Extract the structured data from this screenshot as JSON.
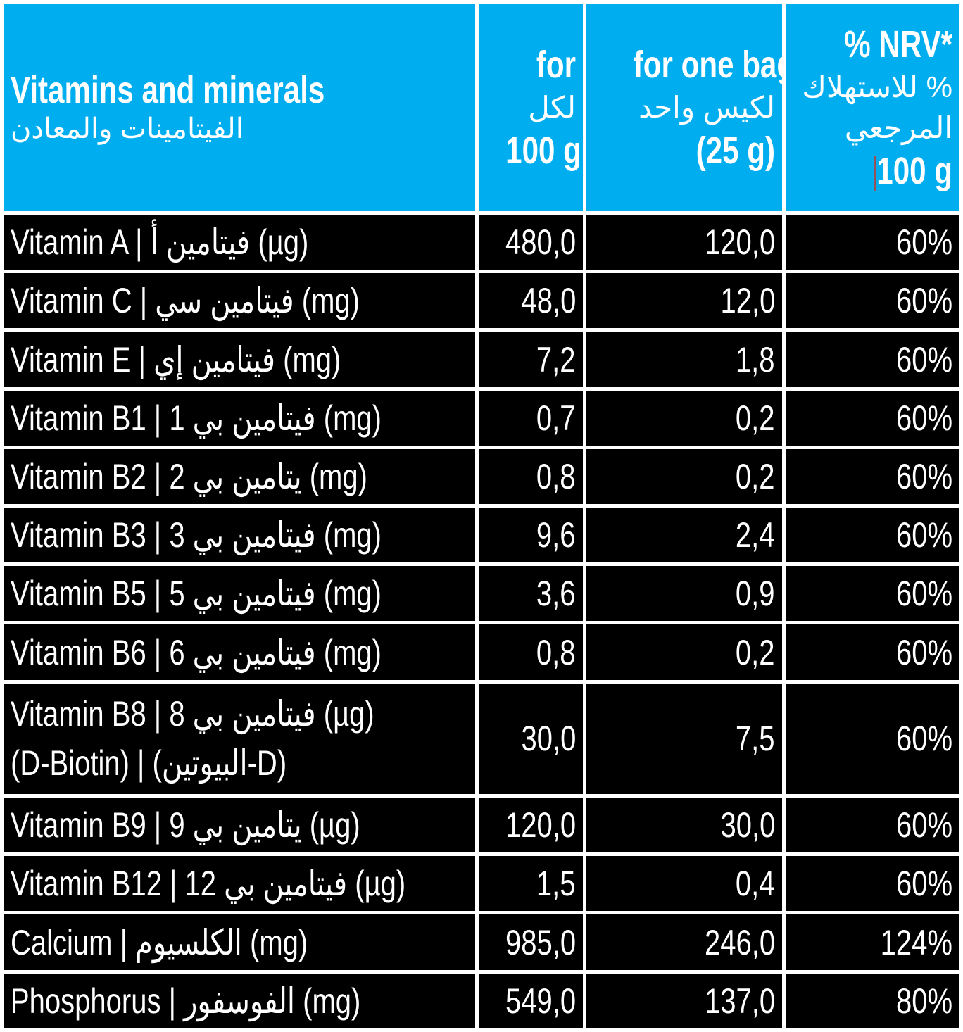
{
  "header": {
    "col1": {
      "title": "Vitamins and minerals",
      "title_ar": "الفيتامينات والمعادن"
    },
    "col2": {
      "line1": "for",
      "line2_ar": "لكل",
      "line3": "100 g"
    },
    "col3": {
      "line1": "for one bag",
      "line2_ar": "لكيس واحد",
      "line3": "(25 g)"
    },
    "col4": {
      "line1": "% NRV*",
      "line2_ar": "% للاستهلاك",
      "line3_ar": "المرجعي",
      "line4": "100 g"
    }
  },
  "rows": [
    {
      "name": "Vitamin A | فيتامين أ (µg)",
      "per100": "480,0",
      "perBag": "120,0",
      "nrv": "60%"
    },
    {
      "name": "Vitamin C | فيتامين سي (mg)",
      "per100": "48,0",
      "perBag": "12,0",
      "nrv": "60%"
    },
    {
      "name": "Vitamin E | فيتامين إي (mg)",
      "per100": "7,2",
      "perBag": "1,8",
      "nrv": "60%"
    },
    {
      "name": "Vitamin B1 | فيتامين بي 1 (mg)",
      "per100": "0,7",
      "perBag": "0,2",
      "nrv": "60%"
    },
    {
      "name": "Vitamin B2 | يتامين بي 2 (mg)",
      "per100": "0,8",
      "perBag": "0,2",
      "nrv": "60%"
    },
    {
      "name": "Vitamin B3 | فيتامين بي 3 (mg)",
      "per100": "9,6",
      "perBag": "2,4",
      "nrv": "60%"
    },
    {
      "name": "Vitamin B5 | فيتامين بي 5 (mg)",
      "per100": "3,6",
      "perBag": "0,9",
      "nrv": "60%"
    },
    {
      "name": "Vitamin B6 | فيتامين بي 6 (mg)",
      "per100": "0,8",
      "perBag": "0,2",
      "nrv": "60%"
    },
    {
      "name_line1": "Vitamin B8 | فيتامين بي 8 (µg)",
      "name_line2": "(D-Biotin) | (البيوتين-D)",
      "per100": "30,0",
      "perBag": "7,5",
      "nrv": "60%"
    },
    {
      "name": "Vitamin B9 | يتامين بي 9 (µg)",
      "per100": "120,0",
      "perBag": "30,0",
      "nrv": "60%"
    },
    {
      "name": "Vitamin B12 | فيتامين بي 12 (µg)",
      "per100": "1,5",
      "perBag": "0,4",
      "nrv": "60%"
    },
    {
      "name": "Calcium | الكلسيوم (mg)",
      "per100": "985,0",
      "perBag": "246,0",
      "nrv": "124%"
    },
    {
      "name": "Phosphorus | الفوسفور (mg)",
      "per100": "549,0",
      "perBag": "137,0",
      "nrv": "80%"
    }
  ],
  "colors": {
    "header_bg": "#00aeef",
    "row_bg": "#000000",
    "text": "#ffffff",
    "grid": "#ffffff"
  }
}
